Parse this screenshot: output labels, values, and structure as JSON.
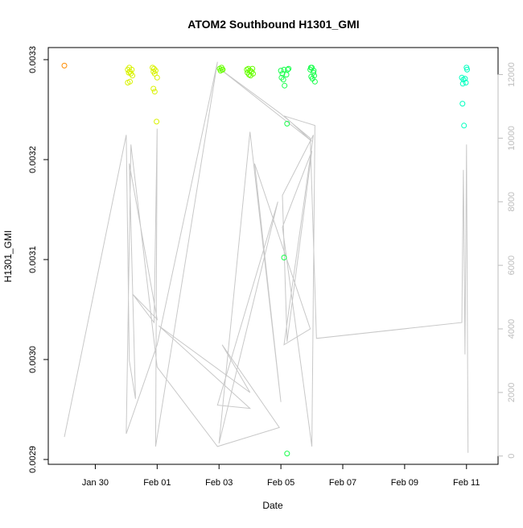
{
  "chart_data": {
    "type": "scatter",
    "title": "ATOM2 Southbound H1301_GMI",
    "xlabel": "Date",
    "ylabel": "H1301_GMI",
    "x_ticks": [
      "Jan 30",
      "Feb 01",
      "Feb 03",
      "Feb 05",
      "Feb 07",
      "Feb 09",
      "Feb 11"
    ],
    "x_tick_values": [
      0,
      2,
      4,
      6,
      8,
      10,
      12
    ],
    "xlim": [
      -1.0,
      12.5
    ],
    "y_ticks": [
      "0.0029",
      "0.0030",
      "0.0031",
      "0.0032",
      "0.0033"
    ],
    "y_tick_values": [
      0.0029,
      0.003,
      0.0031,
      0.0032,
      0.0033
    ],
    "ylim": [
      0.0029,
      0.0033
    ],
    "y2_ticks": [
      "0",
      "2000",
      "4000",
      "6000",
      "8000",
      "10000",
      "12000"
    ],
    "y2_tick_values": [
      0,
      2000,
      4000,
      6000,
      8000,
      10000,
      12000
    ],
    "y2lim": [
      -260,
      12850
    ],
    "colors": {
      "line": "#c8c8c8",
      "axis": "#000000",
      "secondary_axis": "#bdbdbd"
    },
    "scatter_series": [
      {
        "color": "#ff8c00",
        "points": [
          [
            -1.0,
            0.003294
          ]
        ]
      },
      {
        "color": "#d9f200",
        "points": [
          [
            1.05,
            0.00329
          ],
          [
            1.08,
            0.003287
          ],
          [
            1.1,
            0.003292
          ],
          [
            1.12,
            0.003288
          ],
          [
            1.15,
            0.003286
          ],
          [
            1.18,
            0.00329
          ],
          [
            1.05,
            0.003277
          ],
          [
            1.12,
            0.003278
          ],
          [
            1.2,
            0.003284
          ],
          [
            1.85,
            0.003292
          ],
          [
            1.88,
            0.003288
          ],
          [
            1.9,
            0.003291
          ],
          [
            1.92,
            0.003286
          ],
          [
            1.95,
            0.003289
          ],
          [
            2.0,
            0.003282
          ],
          [
            1.92,
            0.003268
          ],
          [
            1.88,
            0.003271
          ],
          [
            1.98,
            0.003238
          ]
        ]
      },
      {
        "color": "#66ff00",
        "points": [
          [
            4.02,
            0.003291
          ],
          [
            4.05,
            0.003289
          ],
          [
            4.08,
            0.003292
          ],
          [
            4.1,
            0.00329
          ],
          [
            4.12,
            0.00329
          ],
          [
            4.9,
            0.00329
          ],
          [
            4.92,
            0.003287
          ],
          [
            4.95,
            0.003291
          ],
          [
            4.97,
            0.003285
          ],
          [
            5.0,
            0.003289
          ],
          [
            5.05,
            0.003288
          ],
          [
            5.08,
            0.003291
          ],
          [
            5.1,
            0.003286
          ],
          [
            5.02,
            0.003284
          ]
        ]
      },
      {
        "color": "#1aff4d",
        "points": [
          [
            6.0,
            0.003289
          ],
          [
            6.05,
            0.003286
          ],
          [
            6.1,
            0.00329
          ],
          [
            6.02,
            0.003282
          ],
          [
            6.08,
            0.00328
          ],
          [
            6.12,
            0.003274
          ],
          [
            6.18,
            0.003285
          ],
          [
            6.22,
            0.00329
          ],
          [
            6.25,
            0.003291
          ],
          [
            6.2,
            0.003236
          ],
          [
            6.1,
            0.003102
          ],
          [
            6.2,
            0.002906
          ],
          [
            6.95,
            0.00329
          ],
          [
            7.0,
            0.003292
          ],
          [
            7.05,
            0.003287
          ],
          [
            6.98,
            0.003283
          ],
          [
            7.02,
            0.003281
          ],
          [
            7.08,
            0.003284
          ],
          [
            7.1,
            0.003278
          ],
          [
            6.97,
            0.003292
          ],
          [
            7.06,
            0.003289
          ]
        ]
      },
      {
        "color": "#00ffbf",
        "points": [
          [
            11.85,
            0.003282
          ],
          [
            11.9,
            0.00328
          ],
          [
            11.88,
            0.003276
          ],
          [
            11.95,
            0.003281
          ],
          [
            11.98,
            0.003277
          ],
          [
            12.0,
            0.003292
          ],
          [
            12.02,
            0.00329
          ],
          [
            11.87,
            0.003256
          ],
          [
            11.92,
            0.003234
          ]
        ]
      }
    ],
    "line_series_y2": [
      [
        -1.0,
        600
      ],
      [
        1.0,
        10100
      ],
      [
        1.1,
        3000
      ],
      [
        1.3,
        1800
      ],
      [
        1.1,
        9200
      ],
      [
        2.0,
        4300
      ],
      [
        1.2,
        5100
      ],
      [
        1.9,
        4200
      ],
      [
        2.0,
        10300
      ],
      [
        1.95,
        300
      ],
      [
        3.95,
        12400
      ],
      [
        2.0,
        3500
      ],
      [
        1.0,
        700
      ],
      [
        1.15,
        9800
      ],
      [
        2.0,
        2800
      ],
      [
        3.95,
        300
      ],
      [
        5.95,
        900
      ],
      [
        4.1,
        3500
      ],
      [
        5.0,
        2000
      ],
      [
        2.05,
        4100
      ],
      [
        5.0,
        1500
      ],
      [
        3.95,
        1600
      ],
      [
        5.9,
        8000
      ],
      [
        4.0,
        400
      ],
      [
        5.0,
        10200
      ],
      [
        6.0,
        1700
      ],
      [
        5.15,
        9200
      ],
      [
        6.95,
        4000
      ],
      [
        6.1,
        3500
      ],
      [
        7.05,
        10100
      ],
      [
        6.05,
        8200
      ],
      [
        6.2,
        3600
      ],
      [
        7.0,
        9600
      ],
      [
        6.05,
        7200
      ],
      [
        7.0,
        300
      ],
      [
        7.1,
        10400
      ],
      [
        6.1,
        10700
      ],
      [
        7.0,
        9900
      ],
      [
        4.0,
        12200
      ],
      [
        5.95,
        10800
      ],
      [
        6.95,
        10000
      ],
      [
        7.15,
        3700
      ],
      [
        11.85,
        4200
      ],
      [
        11.9,
        9000
      ],
      [
        11.95,
        3200
      ],
      [
        12.0,
        9800
      ],
      [
        12.05,
        100
      ]
    ]
  }
}
